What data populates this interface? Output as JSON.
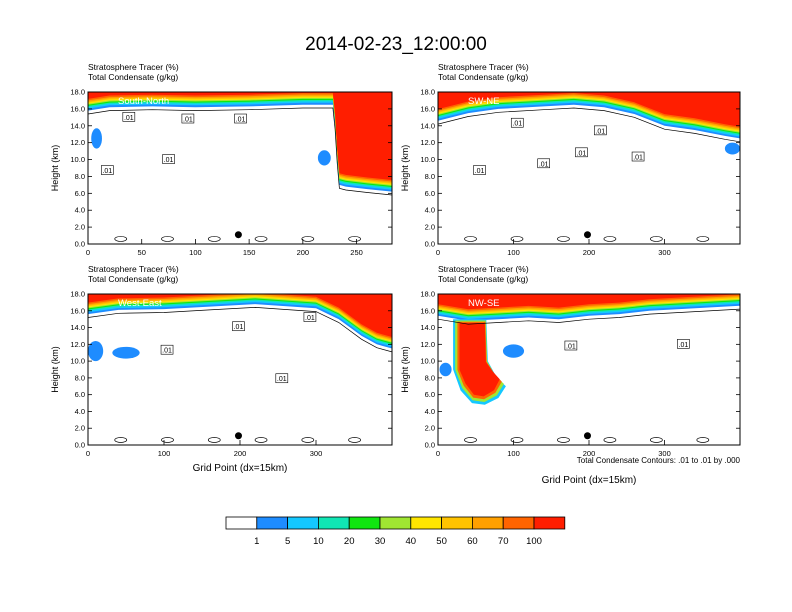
{
  "title": "2014-02-23_12:00:00",
  "legend_values": [
    "1",
    "5",
    "10",
    "20",
    "30",
    "40",
    "50",
    "60",
    "70",
    "100"
  ],
  "colors": {
    "levels": [
      "#ffffff",
      "#1e8cff",
      "#14c8ff",
      "#10e6b4",
      "#10e610",
      "#a0e632",
      "#ffe600",
      "#ffc300",
      "#ffa000",
      "#ff6400",
      "#ff1e00"
    ],
    "contour": "#000000"
  },
  "footer_note": "Total Condensate Contours: .01 to .01 by .000",
  "chart_data": [
    {
      "type": "heatmap",
      "panel_label": "South-North",
      "title_line1": "Stratosphere Tracer   (%)",
      "title_line2": "Total Condensate   (g/kg)",
      "ylabel": "Height (km)",
      "xlabel": "",
      "x_ticks": [
        0,
        50,
        100,
        150,
        200,
        250
      ],
      "xlim": [
        0,
        283
      ],
      "y_ticks": [
        "0.0",
        "2.0",
        "4.0",
        "6.0",
        "8.0",
        "10.0",
        "12.0",
        "14.0",
        "16.0",
        "18.0"
      ],
      "ylim": [
        0,
        18
      ],
      "contour_labels": [
        {
          "text": ".01",
          "x": 38,
          "y": 15.0
        },
        {
          "text": ".01",
          "x": 93,
          "y": 14.8
        },
        {
          "text": ".01",
          "x": 142,
          "y": 14.8
        },
        {
          "text": ".01",
          "x": 75,
          "y": 10.0
        },
        {
          "text": ".01",
          "x": 18,
          "y": 8.7
        }
      ],
      "marker": {
        "x": 140,
        "y": 1.1
      },
      "tropopause": [
        [
          0,
          15.8
        ],
        [
          20,
          16.2
        ],
        [
          60,
          16.3
        ],
        [
          100,
          16.2
        ],
        [
          150,
          16.3
        ],
        [
          200,
          16.5
        ],
        [
          228,
          16.5
        ],
        [
          230,
          14
        ],
        [
          232,
          10
        ],
        [
          234,
          7
        ],
        [
          240,
          6.8
        ],
        [
          260,
          6.5
        ],
        [
          283,
          6.2
        ]
      ],
      "blobs": [
        {
          "x": 8,
          "y": 12.5,
          "rx": 5,
          "ry": 1.2,
          "level": 1
        },
        {
          "x": 220,
          "y": 10.2,
          "rx": 6,
          "ry": 0.9,
          "level": 1
        }
      ]
    },
    {
      "type": "heatmap",
      "panel_label": "SW-NE",
      "title_line1": "Stratosphere Tracer   (%)",
      "title_line2": "Total Condensate   (g/kg)",
      "ylabel": "Height (km)",
      "xlabel": "",
      "x_ticks": [
        0,
        100,
        200,
        300
      ],
      "xlim": [
        0,
        400
      ],
      "y_ticks": [
        "0.0",
        "2.0",
        "4.0",
        "6.0",
        "8.0",
        "10.0",
        "12.0",
        "14.0",
        "16.0",
        "18.0"
      ],
      "ylim": [
        0,
        18
      ],
      "contour_labels": [
        {
          "text": ".01",
          "x": 105,
          "y": 14.3
        },
        {
          "text": ".01",
          "x": 215,
          "y": 13.4
        },
        {
          "text": ".01",
          "x": 190,
          "y": 10.8
        },
        {
          "text": ".01",
          "x": 265,
          "y": 10.3
        },
        {
          "text": ".01",
          "x": 140,
          "y": 9.5
        },
        {
          "text": ".01",
          "x": 55,
          "y": 8.7
        }
      ],
      "marker": {
        "x": 198,
        "y": 1.1
      },
      "tropopause": [
        [
          0,
          14.6
        ],
        [
          40,
          15.5
        ],
        [
          80,
          16.0
        ],
        [
          140,
          16.3
        ],
        [
          180,
          16.5
        ],
        [
          220,
          16.2
        ],
        [
          260,
          15.4
        ],
        [
          300,
          14.0
        ],
        [
          340,
          13.5
        ],
        [
          380,
          12.8
        ],
        [
          400,
          12.5
        ]
      ],
      "blobs": [
        {
          "x": 390,
          "y": 11.3,
          "rx": 10,
          "ry": 0.7,
          "level": 1
        }
      ]
    },
    {
      "type": "heatmap",
      "panel_label": "West-East",
      "title_line1": "Stratosphere Tracer   (%)",
      "title_line2": "Total Condensate   (g/kg)",
      "ylabel": "Height (km)",
      "xlabel": "Grid Point (dx=15km)",
      "x_ticks": [
        0,
        100,
        200,
        300
      ],
      "xlim": [
        0,
        400
      ],
      "y_ticks": [
        "0.0",
        "2.0",
        "4.0",
        "6.0",
        "8.0",
        "10.0",
        "12.0",
        "14.0",
        "16.0",
        "18.0"
      ],
      "ylim": [
        0,
        18
      ],
      "contour_labels": [
        {
          "text": ".01",
          "x": 292,
          "y": 15.2
        },
        {
          "text": ".01",
          "x": 198,
          "y": 14.1
        },
        {
          "text": ".01",
          "x": 104,
          "y": 11.3
        },
        {
          "text": ".01",
          "x": 255,
          "y": 7.9
        }
      ],
      "marker": {
        "x": 198,
        "y": 1.1
      },
      "tropopause": [
        [
          0,
          15.6
        ],
        [
          40,
          16.1
        ],
        [
          100,
          16.2
        ],
        [
          160,
          16.5
        ],
        [
          220,
          16.8
        ],
        [
          300,
          16.3
        ],
        [
          330,
          15.0
        ],
        [
          360,
          13.0
        ],
        [
          380,
          12.0
        ],
        [
          400,
          11.5
        ]
      ],
      "blobs": [
        {
          "x": 10,
          "y": 11.2,
          "rx": 10,
          "ry": 1.2,
          "level": 1
        },
        {
          "x": 50,
          "y": 11.0,
          "rx": 18,
          "ry": 0.7,
          "level": 1
        }
      ]
    },
    {
      "type": "heatmap",
      "panel_label": "NW-SE",
      "title_line1": "Stratosphere Tracer   (%)",
      "title_line2": "Total Condensate   (g/kg)",
      "ylabel": "Height (km)",
      "xlabel": "Grid Point (dx=15km)",
      "x_ticks": [
        0,
        100,
        200,
        300
      ],
      "xlim": [
        0,
        400
      ],
      "y_ticks": [
        "0.0",
        "2.0",
        "4.0",
        "6.0",
        "8.0",
        "10.0",
        "12.0",
        "14.0",
        "16.0",
        "18.0"
      ],
      "ylim": [
        0,
        18
      ],
      "contour_labels": [
        {
          "text": ".01",
          "x": 176,
          "y": 11.8
        },
        {
          "text": ".01",
          "x": 325,
          "y": 12.0
        }
      ],
      "marker": {
        "x": 198,
        "y": 1.1
      },
      "tropopause": [
        [
          0,
          15.4
        ],
        [
          40,
          14.8
        ],
        [
          80,
          15.0
        ],
        [
          120,
          15.2
        ],
        [
          160,
          15.0
        ],
        [
          200,
          15.4
        ],
        [
          240,
          15.6
        ],
        [
          280,
          16.0
        ],
        [
          320,
          16.2
        ],
        [
          400,
          16.6
        ]
      ],
      "intrusion": [
        [
          20,
          15.0
        ],
        [
          20,
          9.0
        ],
        [
          30,
          6.5
        ],
        [
          45,
          5.0
        ],
        [
          62,
          4.8
        ],
        [
          80,
          5.6
        ],
        [
          90,
          7.0
        ],
        [
          78,
          8.0
        ],
        [
          66,
          10.0
        ],
        [
          64,
          15.0
        ]
      ],
      "blobs": [
        {
          "x": 100,
          "y": 11.2,
          "rx": 14,
          "ry": 0.8,
          "level": 1
        },
        {
          "x": 10,
          "y": 9.0,
          "rx": 8,
          "ry": 0.8,
          "level": 1
        }
      ]
    }
  ]
}
